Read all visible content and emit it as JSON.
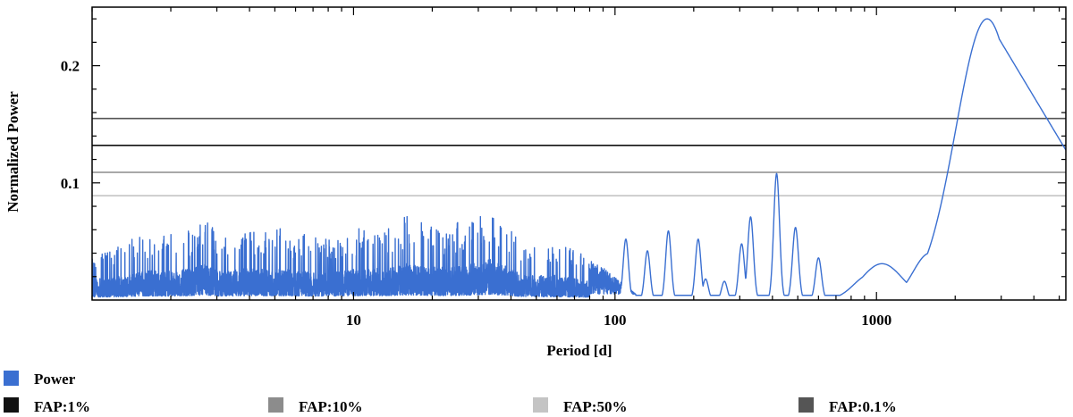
{
  "chart_data": {
    "type": "line",
    "title": "",
    "xlabel": "Period [d]",
    "ylabel": "Normalized Power",
    "x_scale": "log",
    "xlim": [
      1.0,
      5300
    ],
    "ylim": [
      0.0,
      0.25
    ],
    "x_ticks": [
      {
        "value": 10,
        "label": "10"
      },
      {
        "value": 100,
        "label": "100"
      },
      {
        "value": 1000,
        "label": "1000"
      }
    ],
    "y_ticks": [
      {
        "value": 0.1,
        "label": "0.1"
      },
      {
        "value": 0.2,
        "label": "0.2"
      }
    ],
    "grid": false,
    "legend_position": "bottom",
    "series": [
      {
        "name": "Power",
        "color": "#3a6fd1",
        "style": "line",
        "peaks": [
          {
            "x": 1.02,
            "y": 0.04
          },
          {
            "x": 1.05,
            "y": 0.042
          },
          {
            "x": 1.2,
            "y": 0.045
          },
          {
            "x": 1.6,
            "y": 0.058
          },
          {
            "x": 1.9,
            "y": 0.056
          },
          {
            "x": 2.3,
            "y": 0.06
          },
          {
            "x": 2.7,
            "y": 0.071
          },
          {
            "x": 3.1,
            "y": 0.055
          },
          {
            "x": 4.0,
            "y": 0.062
          },
          {
            "x": 5.5,
            "y": 0.061
          },
          {
            "x": 7.0,
            "y": 0.055
          },
          {
            "x": 9.5,
            "y": 0.058
          },
          {
            "x": 11.0,
            "y": 0.064
          },
          {
            "x": 13.5,
            "y": 0.061
          },
          {
            "x": 16.0,
            "y": 0.073
          },
          {
            "x": 19.0,
            "y": 0.066
          },
          {
            "x": 23.0,
            "y": 0.063
          },
          {
            "x": 30.0,
            "y": 0.073
          },
          {
            "x": 34.0,
            "y": 0.081
          },
          {
            "x": 45.0,
            "y": 0.048
          },
          {
            "x": 60.0,
            "y": 0.048
          },
          {
            "x": 75.0,
            "y": 0.04
          }
        ],
        "smooth_components": [
          {
            "x": 110,
            "y": 0.052
          },
          {
            "x": 133,
            "y": 0.042
          },
          {
            "x": 160,
            "y": 0.059
          },
          {
            "x": 208,
            "y": 0.052
          },
          {
            "x": 222,
            "y": 0.018
          },
          {
            "x": 262,
            "y": 0.016
          },
          {
            "x": 305,
            "y": 0.048
          },
          {
            "x": 330,
            "y": 0.071
          },
          {
            "x": 415,
            "y": 0.108
          },
          {
            "x": 490,
            "y": 0.062
          },
          {
            "x": 600,
            "y": 0.036
          },
          {
            "x": 950,
            "y": 0.022
          },
          {
            "x": 1200,
            "y": 0.01
          },
          {
            "x": 1600,
            "y": 0.04
          },
          {
            "x": 2650,
            "y": 0.24
          }
        ]
      },
      {
        "name": "FAP:1%",
        "color": "#111111",
        "style": "hline",
        "y": 0.132
      },
      {
        "name": "FAP:10%",
        "color": "#8c8c8c",
        "style": "hline",
        "y": 0.109
      },
      {
        "name": "FAP:50%",
        "color": "#c4c4c4",
        "style": "hline",
        "y": 0.089
      },
      {
        "name": "FAP:0.1%",
        "color": "#555555",
        "style": "hline",
        "y": 0.155
      }
    ]
  }
}
